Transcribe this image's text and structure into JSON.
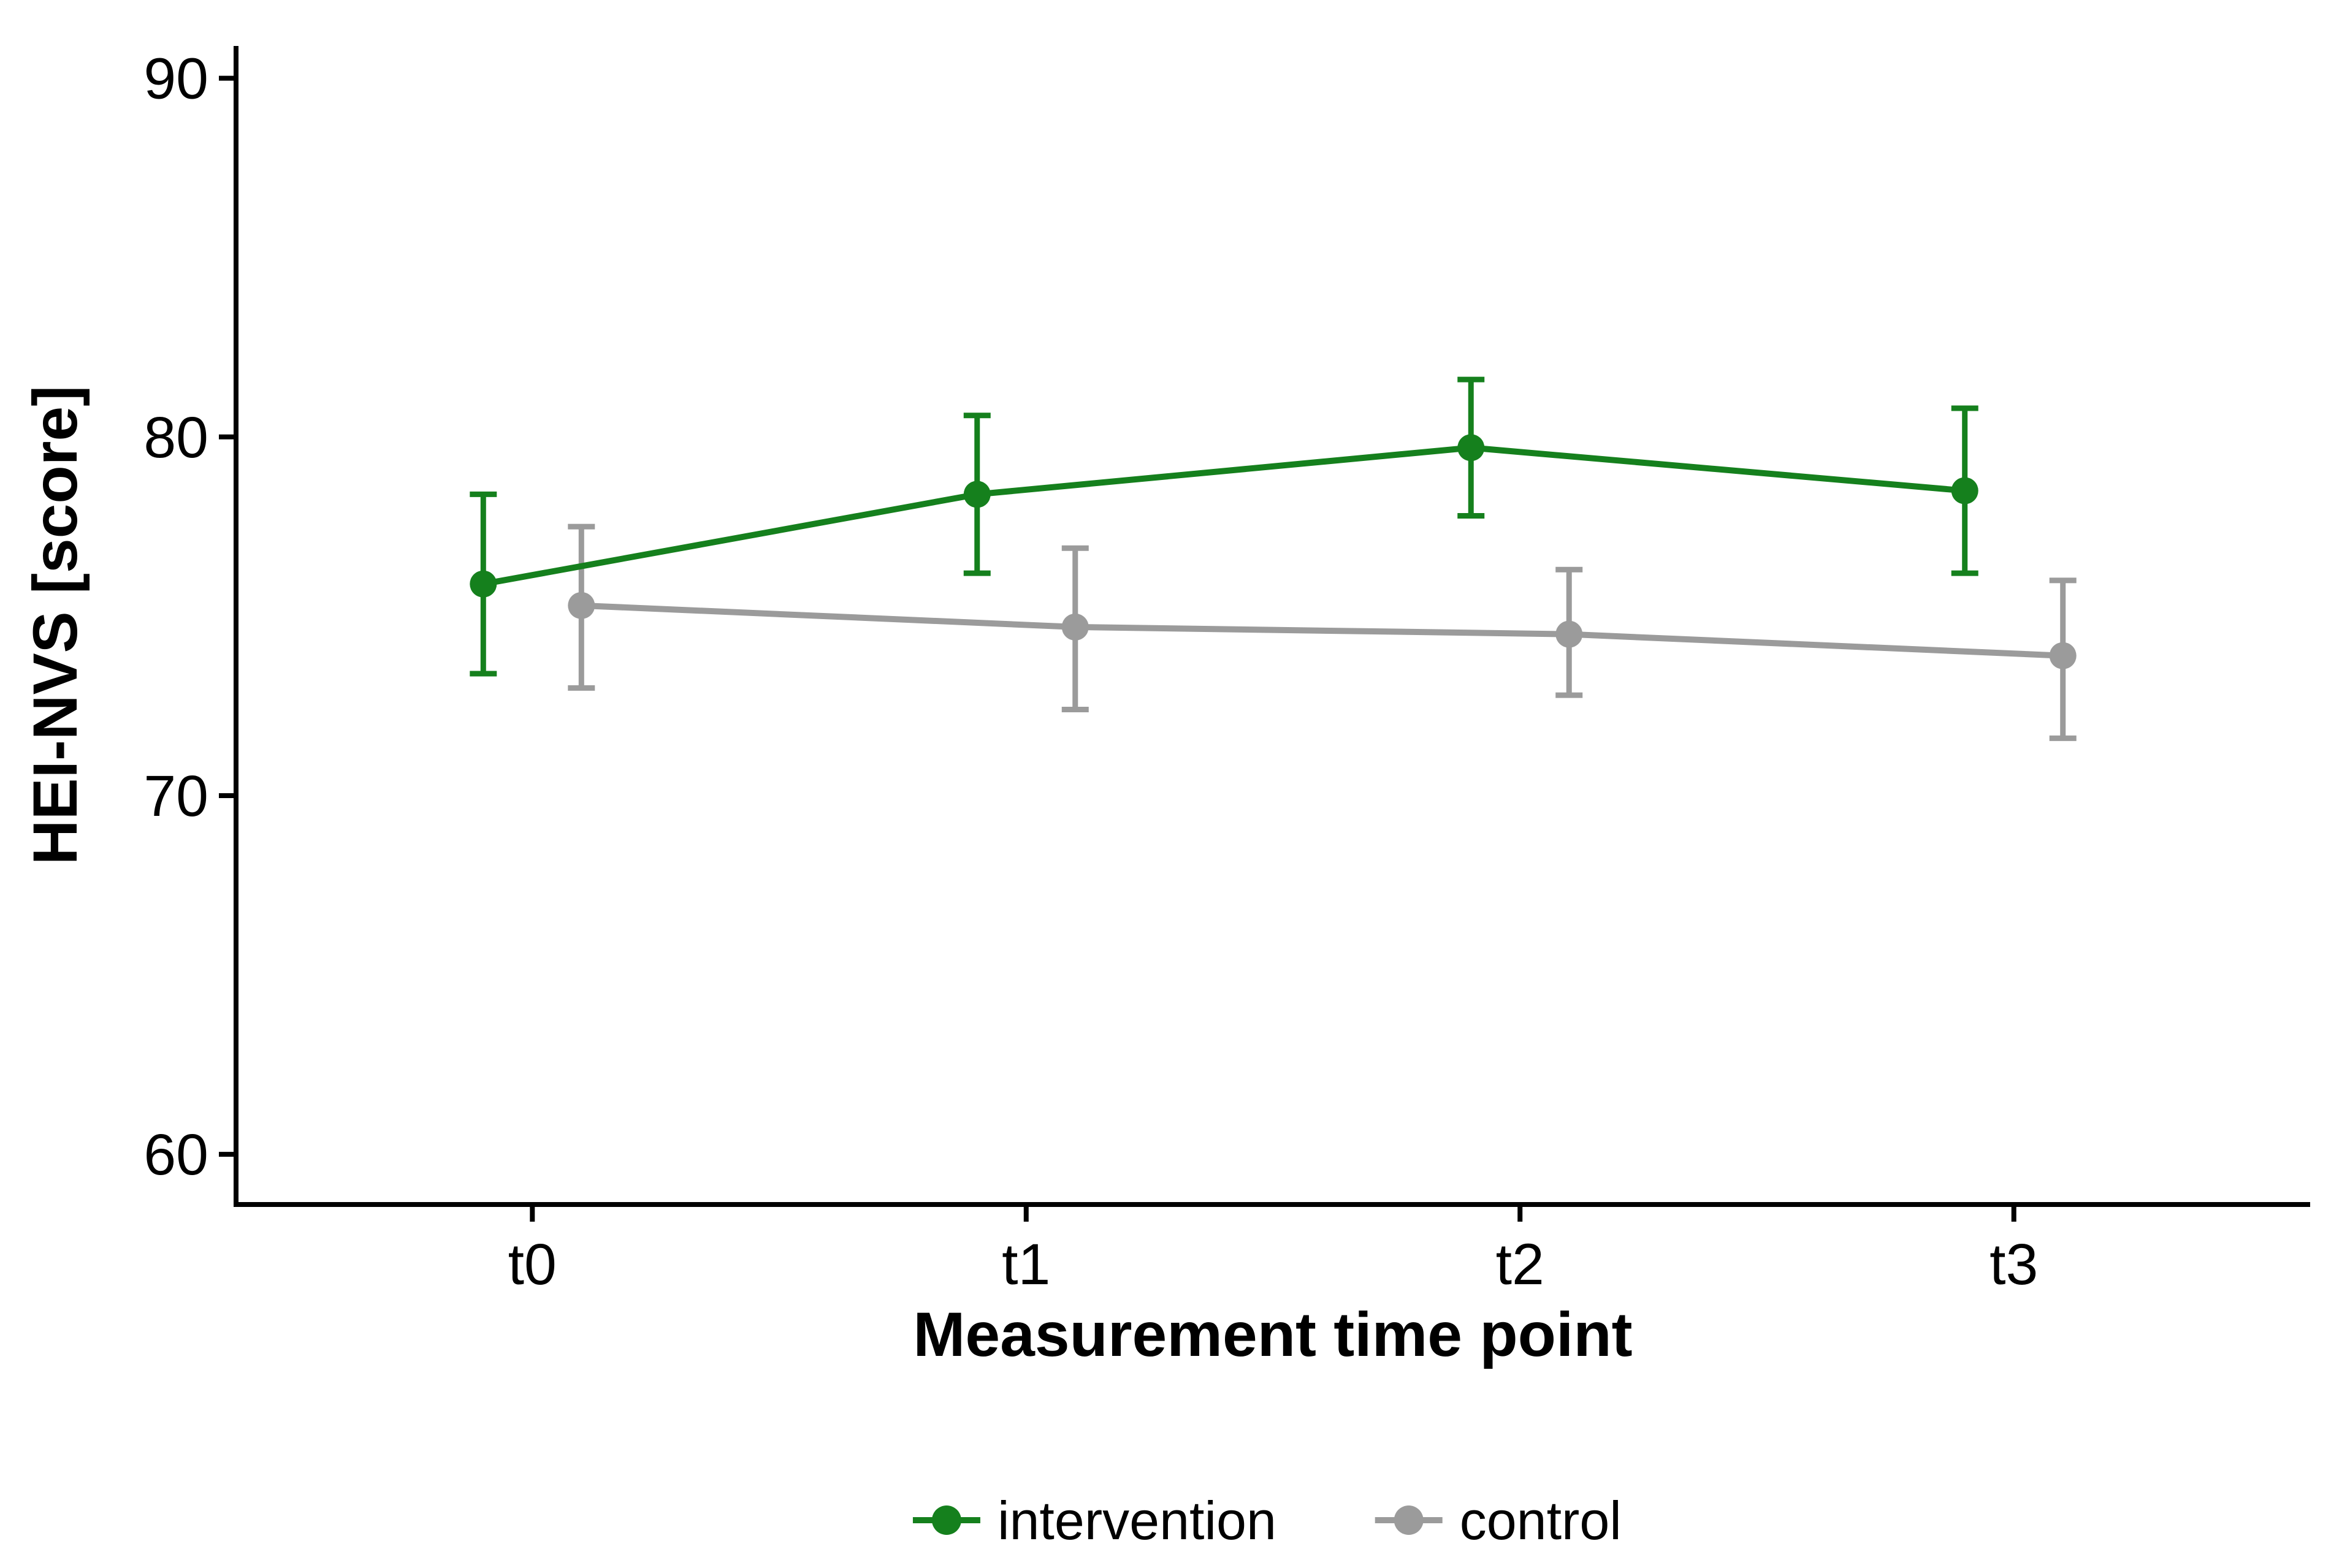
{
  "chart_data": {
    "type": "line",
    "title": "",
    "categories": [
      "t0",
      "t1",
      "t2",
      "t3"
    ],
    "xlabel": "Measurement time point",
    "ylabel": "HEI-NVS [score]",
    "yticks": [
      60,
      70,
      80,
      90
    ],
    "ylim": [
      58.6,
      90.9
    ],
    "grid": false,
    "error_bars": true,
    "legend_position": "bottom",
    "axis_color": "#000000",
    "text_color": "#000000",
    "background_color": "#ffffff",
    "series": [
      {
        "name": "intervention",
        "color": "#15801d",
        "values": [
          75.9,
          78.4,
          79.7,
          78.5
        ],
        "err_low": [
          73.4,
          76.2,
          77.8,
          76.2
        ],
        "err_high": [
          78.4,
          80.6,
          81.6,
          80.8
        ]
      },
      {
        "name": "control",
        "color": "#9b9b9b",
        "values": [
          75.3,
          74.7,
          74.5,
          73.9
        ],
        "err_low": [
          73.0,
          72.4,
          72.8,
          71.6
        ],
        "err_high": [
          77.5,
          76.9,
          76.3,
          76.0
        ]
      }
    ]
  }
}
